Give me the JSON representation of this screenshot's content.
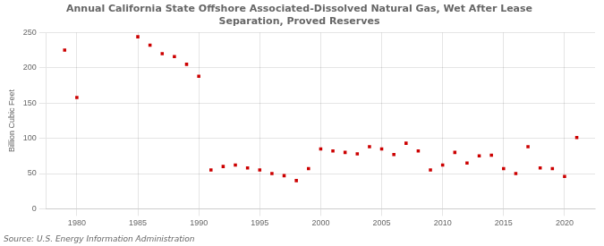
{
  "chart_data": {
    "type": "scatter",
    "title": "Annual California State Offshore Associated-Dissolved Natural Gas, Wet After Lease\nSeparation, Proved Reserves",
    "ylabel": "Billion Cubic Feet",
    "source": "Source: U.S. Energy Information Administration",
    "x": [
      1979,
      1980,
      1985,
      1986,
      1987,
      1988,
      1989,
      1990,
      1991,
      1992,
      1993,
      1994,
      1995,
      1996,
      1997,
      1998,
      1999,
      2000,
      2001,
      2002,
      2003,
      2004,
      2005,
      2006,
      2007,
      2008,
      2009,
      2010,
      2011,
      2012,
      2013,
      2014,
      2015,
      2016,
      2017,
      2018,
      2019,
      2020,
      2021
    ],
    "values": [
      225,
      158,
      244,
      232,
      220,
      216,
      205,
      188,
      55,
      60,
      62,
      58,
      55,
      50,
      47,
      40,
      57,
      85,
      82,
      80,
      78,
      88,
      85,
      77,
      93,
      82,
      55,
      62,
      80,
      65,
      75,
      76,
      57,
      50,
      88,
      58,
      57,
      46,
      101
    ],
    "color": "#cc0000",
    "marker": "square",
    "xlim": [
      1977.5,
      2022.5
    ],
    "ylim": [
      0,
      250
    ],
    "xticks": [
      1980,
      1985,
      1990,
      1995,
      2000,
      2005,
      2010,
      2015,
      2020
    ],
    "yticks": [
      0,
      50,
      100,
      150,
      200,
      250
    ],
    "grid": true
  }
}
